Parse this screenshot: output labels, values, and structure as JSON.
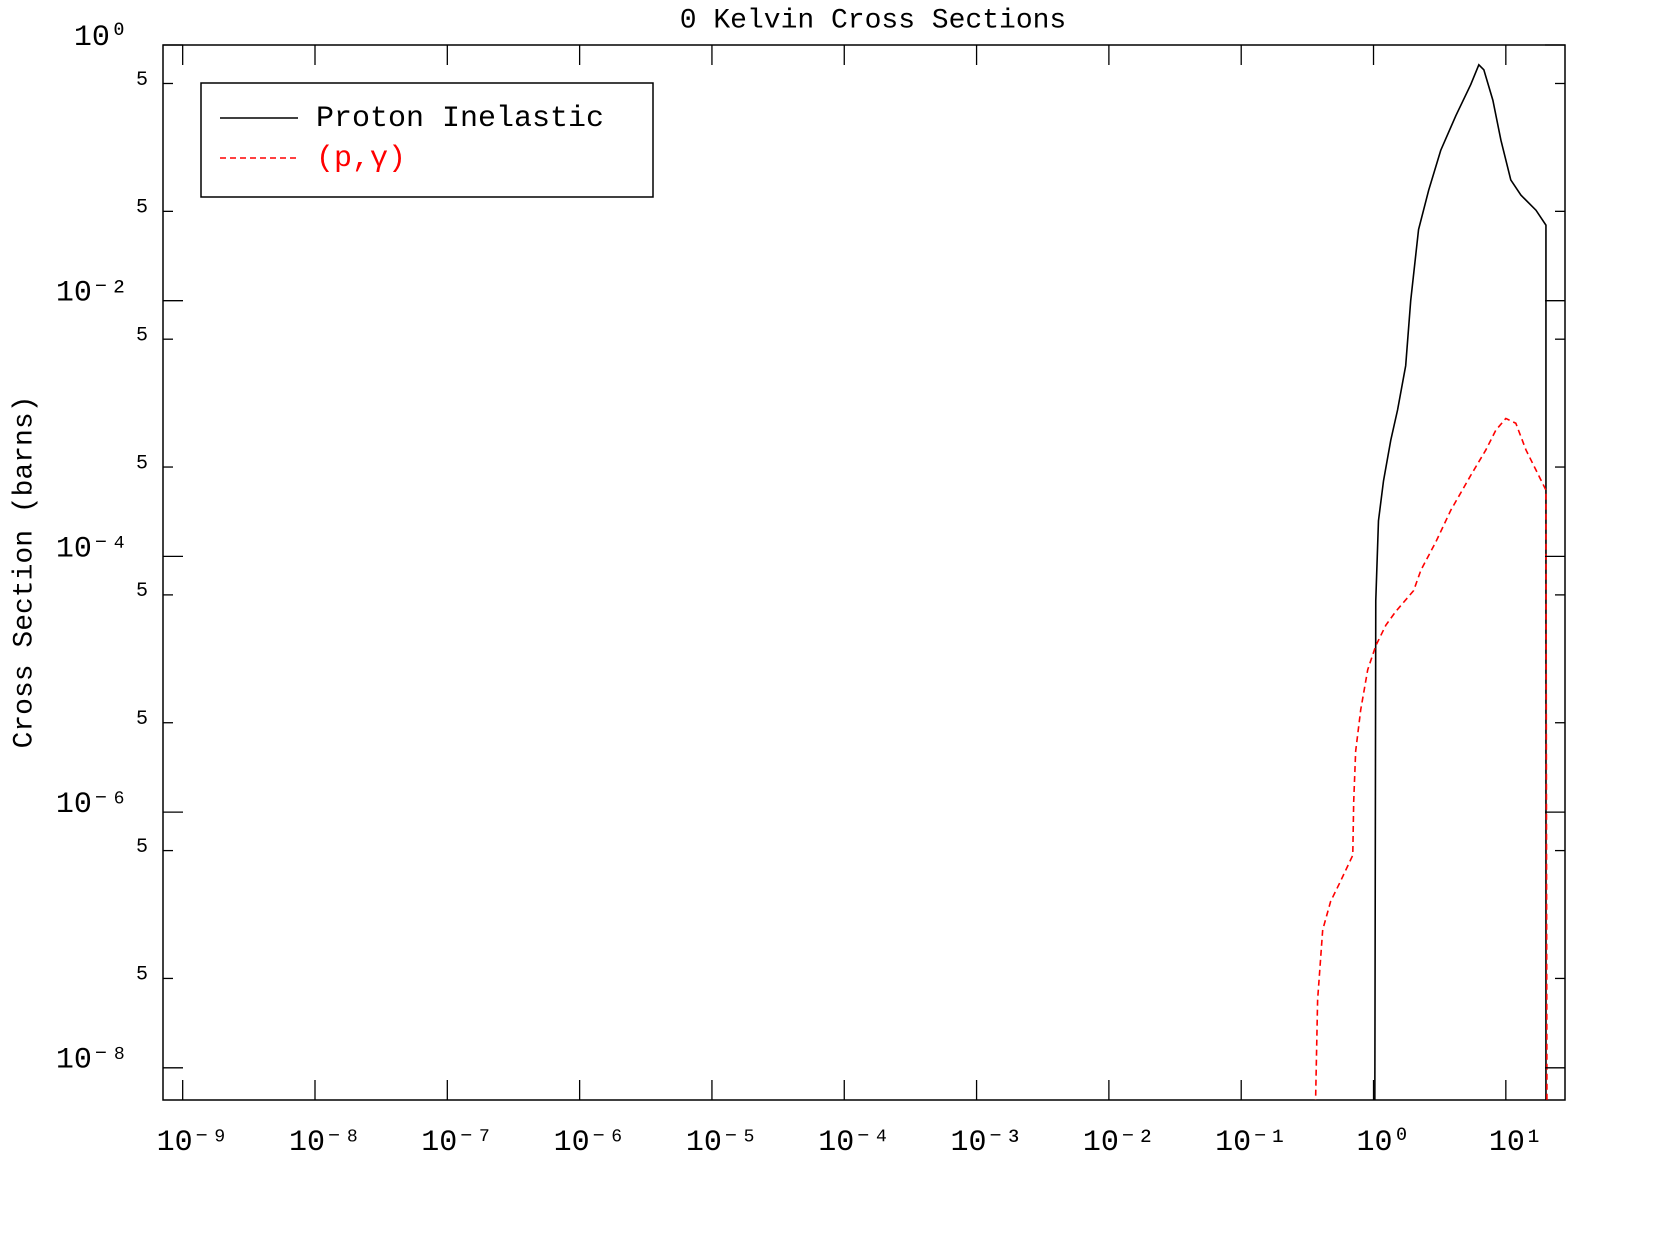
{
  "chart_data": {
    "type": "line",
    "title": "0 Kelvin Cross Sections",
    "y_label": "Cross Section (barns)",
    "x_scale": "log",
    "y_scale": "log",
    "xlim": [
      7.1e-10,
      28
    ],
    "ylim": [
      5.6e-09,
      1
    ],
    "xticks": [
      {
        "value": 1e-09,
        "label": "10⁻⁹"
      },
      {
        "value": 1e-08,
        "label": "10⁻⁸"
      },
      {
        "value": 1e-07,
        "label": "10⁻⁷"
      },
      {
        "value": 1e-06,
        "label": "10⁻⁶"
      },
      {
        "value": 1e-05,
        "label": "10⁻⁵"
      },
      {
        "value": 0.0001,
        "label": "10⁻⁴"
      },
      {
        "value": 0.001,
        "label": "10⁻³"
      },
      {
        "value": 0.01,
        "label": "10⁻²"
      },
      {
        "value": 0.1,
        "label": "10⁻¹"
      },
      {
        "value": 1,
        "label": "10⁰"
      },
      {
        "value": 10,
        "label": "10¹"
      }
    ],
    "yticks": [
      {
        "value": 1,
        "label": "10⁰"
      },
      {
        "value": 0.5,
        "label": "5"
      },
      {
        "value": 0.05,
        "label": "5"
      },
      {
        "value": 0.01,
        "label": "10⁻²"
      },
      {
        "value": 0.005,
        "label": "5"
      },
      {
        "value": 0.0005,
        "label": "5"
      },
      {
        "value": 0.0001,
        "label": "10⁻⁴"
      },
      {
        "value": 5e-05,
        "label": "5"
      },
      {
        "value": 5e-06,
        "label": "5"
      },
      {
        "value": 1e-06,
        "label": "10⁻⁶"
      },
      {
        "value": 5e-07,
        "label": "5"
      },
      {
        "value": 5e-08,
        "label": "5"
      },
      {
        "value": 1e-08,
        "label": "10⁻⁸"
      }
    ],
    "legend": "upper left",
    "series": [
      {
        "name": "Proton Inelastic",
        "color": "#000000",
        "dash": "solid",
        "x": [
          1.02,
          1.04,
          1.09,
          1.19,
          1.35,
          1.52,
          1.75,
          1.91,
          2.19,
          2.61,
          3.22,
          4.19,
          5.43,
          6.25,
          6.82,
          7.98,
          9.18,
          10.9,
          13.0,
          16.9,
          20.1,
          20.1
        ],
        "values": [
          1e-09,
          4.5e-05,
          0.00019,
          0.00039,
          0.00081,
          0.0014,
          0.0031,
          0.01,
          0.036,
          0.073,
          0.15,
          0.28,
          0.49,
          0.7,
          0.64,
          0.37,
          0.18,
          0.088,
          0.067,
          0.051,
          0.039,
          1e-09
        ]
      },
      {
        "name": "(p,γ)",
        "color": "#ff0000",
        "dash": "dashed",
        "x": [
          0.353,
          0.378,
          0.413,
          0.474,
          0.565,
          0.697,
          0.708,
          0.733,
          0.8,
          0.904,
          1.04,
          1.24,
          1.47,
          2.01,
          2.28,
          2.96,
          3.84,
          5.43,
          7.06,
          8.4,
          10.0,
          11.9,
          14.2,
          20.1,
          20.5
        ],
        "values": [
          1e-09,
          3.4e-08,
          1.2e-07,
          2e-07,
          2.9e-07,
          4.6e-07,
          1.2e-06,
          3e-06,
          6.3e-06,
          1.3e-05,
          2e-05,
          2.9e-05,
          3.7e-05,
          5.4e-05,
          7.8e-05,
          0.00013,
          0.00023,
          0.00043,
          0.00068,
          0.00097,
          0.0012,
          0.0011,
          0.00068,
          0.00033,
          1e-09
        ]
      }
    ]
  }
}
